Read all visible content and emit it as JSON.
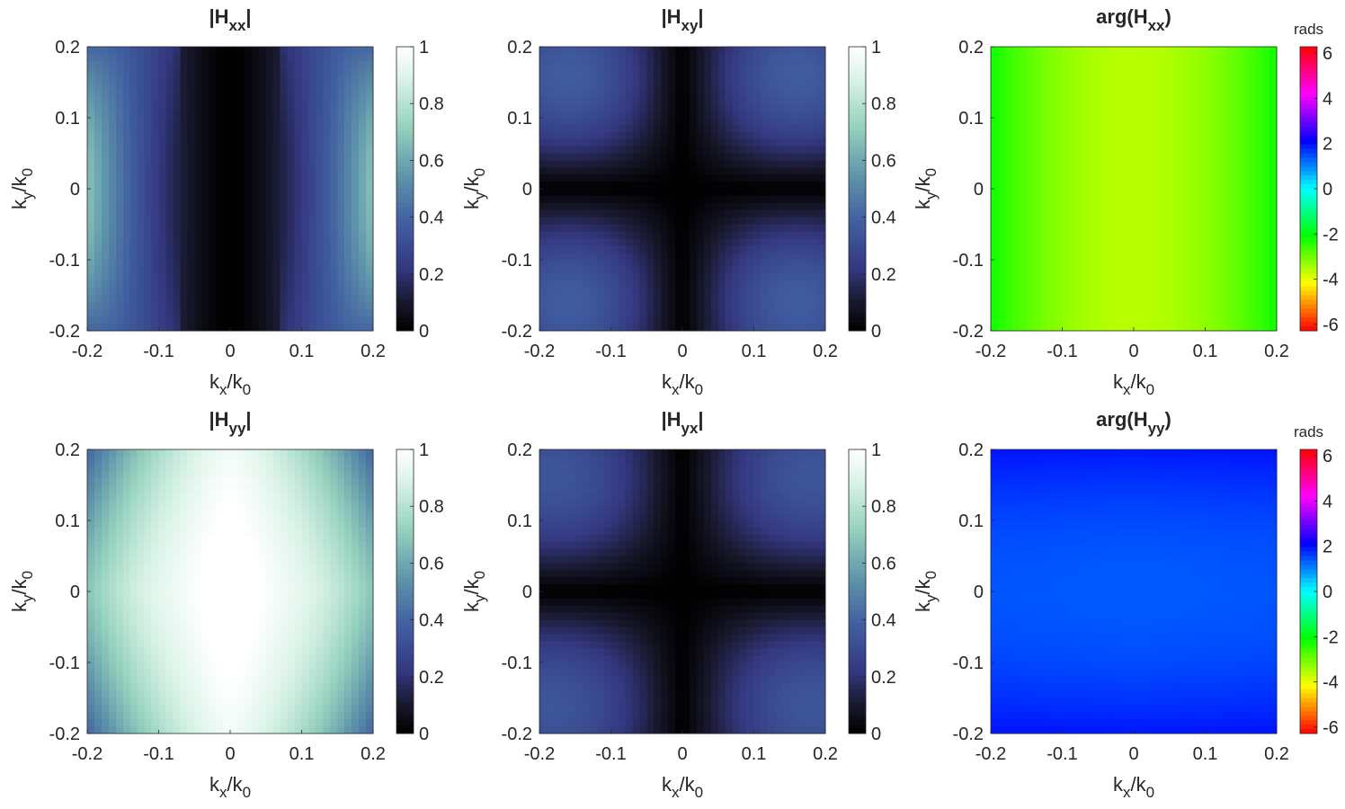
{
  "chart_data": [
    {
      "type": "heatmap",
      "title": "|Hxx|",
      "title_parts": {
        "open": "|H",
        "sub": "xx",
        "close": "|"
      },
      "xlabel": {
        "main": "k",
        "sub": "x",
        "mid": "/k",
        "sub2": "0"
      },
      "ylabel": {
        "main": "k",
        "sub": "y",
        "mid": "/k",
        "sub2": "0"
      },
      "xlim": [
        -0.2,
        0.2
      ],
      "ylim": [
        -0.2,
        0.2
      ],
      "xticks": [
        "-0.2",
        "-0.1",
        "0",
        "0.1",
        "0.2"
      ],
      "yticks": [
        "-0.2",
        "-0.1",
        "0",
        "0.1",
        "0.2"
      ],
      "colormap": "dark-blue-teal-white",
      "clim": [
        0,
        1
      ],
      "cticks": [
        "0",
        "0.2",
        "0.4",
        "0.6",
        "0.8",
        "1"
      ],
      "colorbar_unit": "",
      "pattern": "abs_hxx",
      "grid": false
    },
    {
      "type": "heatmap",
      "title": "|Hxy|",
      "title_parts": {
        "open": "|H",
        "sub": "xy",
        "close": "|"
      },
      "xlabel": {
        "main": "k",
        "sub": "x",
        "mid": "/k",
        "sub2": "0"
      },
      "ylabel": {
        "main": "k",
        "sub": "y",
        "mid": "/k",
        "sub2": "0"
      },
      "xlim": [
        -0.2,
        0.2
      ],
      "ylim": [
        -0.2,
        0.2
      ],
      "xticks": [
        "-0.2",
        "-0.1",
        "0",
        "0.1",
        "0.2"
      ],
      "yticks": [
        "-0.2",
        "-0.1",
        "0",
        "0.1",
        "0.2"
      ],
      "colormap": "dark-blue-teal-white",
      "clim": [
        0,
        1
      ],
      "cticks": [
        "0",
        "0.2",
        "0.4",
        "0.6",
        "0.8",
        "1"
      ],
      "colorbar_unit": "",
      "pattern": "abs_hxy",
      "grid": false
    },
    {
      "type": "heatmap",
      "title": "arg(Hxx)",
      "title_parts": {
        "open": "arg(H",
        "sub": "xx",
        "close": ")"
      },
      "xlabel": {
        "main": "k",
        "sub": "x",
        "mid": "/k",
        "sub2": "0"
      },
      "ylabel": {
        "main": "k",
        "sub": "y",
        "mid": "/k",
        "sub2": "0"
      },
      "xlim": [
        -0.2,
        0.2
      ],
      "ylim": [
        -0.2,
        0.2
      ],
      "xticks": [
        "-0.2",
        "-0.1",
        "0",
        "0.1",
        "0.2"
      ],
      "yticks": [
        "-0.2",
        "-0.1",
        "0",
        "0.1",
        "0.2"
      ],
      "colormap": "hsv",
      "clim": [
        -6.2832,
        6.2832
      ],
      "cticks": [
        "-6",
        "-4",
        "-2",
        "0",
        "2",
        "4",
        "6"
      ],
      "colorbar_unit": "rads",
      "pattern": "arg_hxx",
      "grid": false
    },
    {
      "type": "heatmap",
      "title": "|Hyy|",
      "title_parts": {
        "open": "|H",
        "sub": "yy",
        "close": "|"
      },
      "xlabel": {
        "main": "k",
        "sub": "x",
        "mid": "/k",
        "sub2": "0"
      },
      "ylabel": {
        "main": "k",
        "sub": "y",
        "mid": "/k",
        "sub2": "0"
      },
      "xlim": [
        -0.2,
        0.2
      ],
      "ylim": [
        -0.2,
        0.2
      ],
      "xticks": [
        "-0.2",
        "-0.1",
        "0",
        "0.1",
        "0.2"
      ],
      "yticks": [
        "-0.2",
        "-0.1",
        "0",
        "0.1",
        "0.2"
      ],
      "colormap": "dark-blue-teal-white",
      "clim": [
        0,
        1
      ],
      "cticks": [
        "0",
        "0.2",
        "0.4",
        "0.6",
        "0.8",
        "1"
      ],
      "colorbar_unit": "",
      "pattern": "abs_hyy",
      "grid": false
    },
    {
      "type": "heatmap",
      "title": "|Hyx|",
      "title_parts": {
        "open": "|H",
        "sub": "yx",
        "close": "|"
      },
      "xlabel": {
        "main": "k",
        "sub": "x",
        "mid": "/k",
        "sub2": "0"
      },
      "ylabel": {
        "main": "k",
        "sub": "y",
        "mid": "/k",
        "sub2": "0"
      },
      "xlim": [
        -0.2,
        0.2
      ],
      "ylim": [
        -0.2,
        0.2
      ],
      "xticks": [
        "-0.2",
        "-0.1",
        "0",
        "0.1",
        "0.2"
      ],
      "yticks": [
        "-0.2",
        "-0.1",
        "0",
        "0.1",
        "0.2"
      ],
      "colormap": "dark-blue-teal-white",
      "clim": [
        0,
        1
      ],
      "cticks": [
        "0",
        "0.2",
        "0.4",
        "0.6",
        "0.8",
        "1"
      ],
      "colorbar_unit": "",
      "pattern": "abs_hyx",
      "grid": false
    },
    {
      "type": "heatmap",
      "title": "arg(Hyy)",
      "title_parts": {
        "open": "arg(H",
        "sub": "yy",
        "close": ")"
      },
      "xlabel": {
        "main": "k",
        "sub": "x",
        "mid": "/k",
        "sub2": "0"
      },
      "ylabel": {
        "main": "k",
        "sub": "y",
        "mid": "/k",
        "sub2": "0"
      },
      "xlim": [
        -0.2,
        0.2
      ],
      "ylim": [
        -0.2,
        0.2
      ],
      "xticks": [
        "-0.2",
        "-0.1",
        "0",
        "0.1",
        "0.2"
      ],
      "yticks": [
        "-0.2",
        "-0.1",
        "0",
        "0.1",
        "0.2"
      ],
      "colormap": "hsv",
      "clim": [
        -6.2832,
        6.2832
      ],
      "cticks": [
        "-6",
        "-4",
        "-2",
        "0",
        "2",
        "4",
        "6"
      ],
      "colorbar_unit": "rads",
      "pattern": "arg_hyy",
      "grid": false
    }
  ]
}
